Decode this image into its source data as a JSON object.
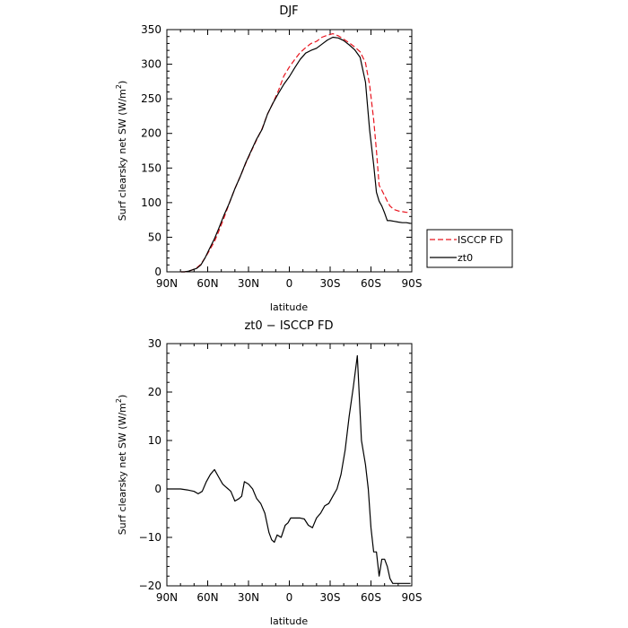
{
  "chart_data": [
    {
      "type": "line",
      "title": "DJF",
      "xlabel": "latitude",
      "ylabel_main": "Surf clearsky net SW (W/m",
      "ylabel_sup": "2",
      "ylabel_close": ")",
      "xlim": [
        90,
        -90
      ],
      "ylim": [
        0,
        350
      ],
      "x_ticks": [
        90,
        60,
        30,
        0,
        -30,
        -60,
        -90
      ],
      "x_tick_labels": [
        "90N",
        "60N",
        "30N",
        "0",
        "30S",
        "60S",
        "90S"
      ],
      "y_ticks": [
        0,
        50,
        100,
        150,
        200,
        250,
        300,
        350
      ],
      "y_tick_labels": [
        "0",
        "50",
        "100",
        "150",
        "200",
        "250",
        "300",
        "350"
      ],
      "legend": {
        "placement": "outside-right"
      },
      "series": [
        {
          "name": "ISCCP FD",
          "color": "#e8141e",
          "dash": "dashed",
          "x": [
            79.5,
            77,
            74,
            71,
            68,
            65,
            62,
            59,
            55,
            52,
            48,
            44,
            40,
            36,
            32,
            28,
            24,
            20,
            16,
            12,
            8,
            4,
            0,
            -4,
            -8,
            -12,
            -16,
            -20,
            -24,
            -28,
            -32,
            -36,
            -40,
            -44,
            -48,
            -52,
            -56,
            -59,
            -62,
            -64,
            -66,
            -68,
            -70,
            -72,
            -74,
            -77,
            -80,
            -83,
            -86,
            -89
          ],
          "y": [
            0,
            0,
            1,
            3,
            6,
            11,
            20,
            30,
            44,
            58,
            78,
            100,
            120,
            138,
            157,
            174,
            191,
            207,
            228,
            244,
            262,
            283,
            296,
            307,
            317,
            324,
            330,
            333,
            339,
            342,
            344,
            341,
            336,
            331,
            325,
            318,
            302,
            270,
            220,
            175,
            125,
            118,
            110,
            102,
            95,
            90,
            88,
            87,
            86,
            86
          ]
        },
        {
          "name": "zt0",
          "color": "#000000",
          "dash": "solid",
          "x": [
            79.5,
            77,
            74,
            71,
            68,
            65,
            62,
            59,
            55,
            52,
            48,
            44,
            40,
            36,
            32,
            28,
            24,
            20,
            16,
            12,
            8,
            4,
            0,
            -4,
            -8,
            -12,
            -16,
            -20,
            -24,
            -28,
            -32,
            -36,
            -40,
            -44,
            -48,
            -52,
            -56,
            -59,
            -62,
            -64,
            -66,
            -68,
            -70,
            -72,
            -74,
            -77,
            -80,
            -83,
            -86,
            -89
          ],
          "y": [
            0,
            0,
            1,
            3,
            5,
            10,
            20,
            32,
            48,
            62,
            82,
            100,
            120,
            138,
            158,
            175,
            192,
            206,
            228,
            244,
            258,
            271,
            282,
            295,
            307,
            316,
            320,
            323,
            329,
            335,
            339,
            338,
            334,
            328,
            321,
            310,
            274,
            205,
            155,
            115,
            102,
            95,
            85,
            74,
            74,
            73,
            72,
            71,
            71,
            70
          ]
        }
      ]
    },
    {
      "type": "line",
      "title": "zt0 − ISCCP FD",
      "xlabel": "latitude",
      "ylabel_main": "Surf clearsky net SW (W/m",
      "ylabel_sup": "2",
      "ylabel_close": ")",
      "xlim": [
        90,
        -90
      ],
      "ylim": [
        -20,
        30
      ],
      "x_ticks": [
        90,
        60,
        30,
        0,
        -30,
        -60,
        -90
      ],
      "x_tick_labels": [
        "90N",
        "60N",
        "30N",
        "0",
        "30S",
        "60S",
        "90S"
      ],
      "y_ticks": [
        -20,
        -10,
        0,
        10,
        20,
        30
      ],
      "y_tick_labels": [
        "−20",
        "−10",
        "0",
        "10",
        "20",
        "30"
      ],
      "series": [
        {
          "color": "#000000",
          "dash": "solid",
          "x": [
            90,
            84,
            80,
            75,
            70,
            67,
            64,
            61,
            58,
            55,
            52,
            49,
            47,
            45,
            43,
            40,
            37,
            35,
            33,
            30,
            27,
            24,
            21,
            18,
            15,
            13,
            11,
            9,
            6,
            3,
            1,
            -1,
            -3,
            -5,
            -8,
            -11,
            -14,
            -17,
            -20,
            -23,
            -26,
            -29,
            -32,
            -35,
            -38,
            -41,
            -44,
            -47,
            -50,
            -53,
            -56,
            -58,
            -60,
            -62,
            -64,
            -66,
            -68,
            -70,
            -72,
            -74,
            -76,
            -78,
            -80,
            -83,
            -86,
            -89
          ],
          "y": [
            0,
            0,
            0,
            -0.2,
            -0.5,
            -1,
            -0.5,
            1.5,
            3,
            4,
            2.5,
            1,
            0.5,
            0,
            -0.5,
            -2.5,
            -2,
            -1.5,
            1.5,
            1,
            0,
            -2,
            -3,
            -5,
            -9,
            -10.5,
            -11,
            -9.5,
            -10,
            -7.5,
            -7,
            -6,
            -6,
            -6,
            -6,
            -6.2,
            -7.5,
            -8,
            -6,
            -5,
            -3.5,
            -3,
            -1.5,
            0,
            3,
            8,
            15,
            21,
            27.5,
            10,
            5,
            0,
            -8,
            -13,
            -13,
            -18,
            -14.5,
            -14.5,
            -16,
            -18.5,
            -19.5,
            -19.5,
            -19.5,
            -19.5,
            -19.5,
            -19.5
          ]
        }
      ]
    }
  ]
}
